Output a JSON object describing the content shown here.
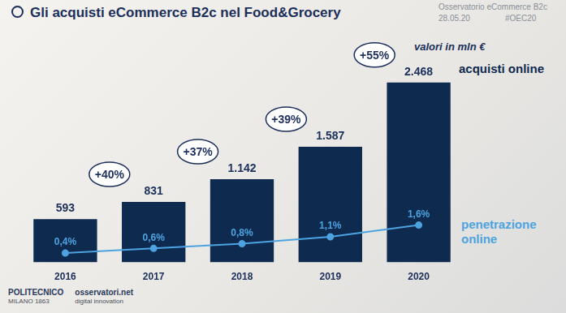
{
  "header": {
    "title": "Gli acquisti eCommerce B2c nel Food&Grocery",
    "source": "Osservatorio eCommerce B2c",
    "date": "28.05.20",
    "hashtag": "#OEC20"
  },
  "footer": {
    "logos": [
      [
        "POLITECNICO",
        "MILANO 1863"
      ],
      [
        "osservatori.net",
        "digital innovation"
      ]
    ]
  },
  "chart_data": {
    "type": "bar",
    "subtitle": "valori in mln €",
    "categories": [
      "2016",
      "2017",
      "2018",
      "2019",
      "2020"
    ],
    "series": [
      {
        "name": "acquisti online",
        "type": "bar",
        "color": "#0f2a4f",
        "values": [
          593,
          831,
          1142,
          1587,
          2468
        ],
        "value_labels": [
          "593",
          "831",
          "1.142",
          "1.587",
          "2.468"
        ]
      },
      {
        "name": "penetrazione online",
        "type": "line",
        "axis": "y2",
        "color": "#4da3e0",
        "marker": "circle",
        "values": [
          0.4,
          0.6,
          0.8,
          1.1,
          1.6
        ],
        "value_labels": [
          "0,4%",
          "0,6%",
          "0,8%",
          "1,1%",
          "1,6%"
        ]
      }
    ],
    "annotations": [
      "+40%",
      "+37%",
      "+39%",
      "+55%"
    ],
    "ylim": [
      0,
      3200
    ],
    "y2lim": [
      0,
      10
    ],
    "data_labels": true,
    "tick_labels": "x",
    "grid": false
  }
}
